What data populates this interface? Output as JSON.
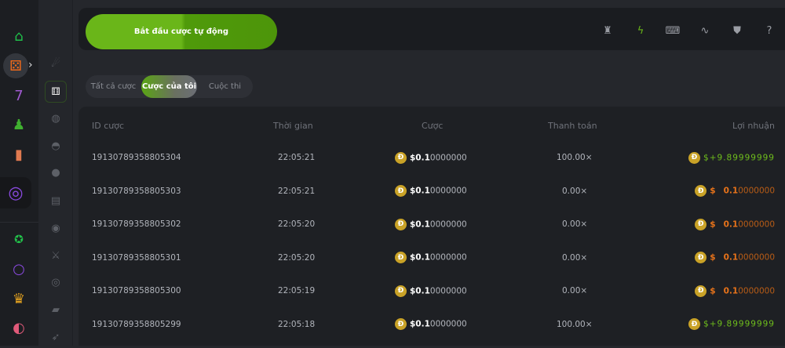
{
  "sidebar": {
    "icons": [
      "home-icon",
      "dice-icon",
      "slot-icon",
      "joystick-icon",
      "cards-icon",
      "target-icon",
      "star-badge-icon",
      "ring-icon",
      "crown-icon",
      "mask-icon"
    ],
    "expand": "›"
  },
  "game_bar": {
    "icons": [
      "comet-icon",
      "dice-white-icon",
      "chips-icon",
      "helmet-icon",
      "ball-icon",
      "card-stack-icon",
      "bomb-icon",
      "rocket-sword-icon",
      "disc-icon",
      "tank-icon",
      "rocket-icon"
    ]
  },
  "auto_bet": {
    "label": "Bắt đầu cược tự động"
  },
  "toolbar": {
    "icons": [
      "trophy-icon",
      "lightning-icon",
      "keyboard-icon",
      "chart-wave-icon",
      "acorn-icon",
      "help-icon"
    ]
  },
  "tabs": [
    {
      "label": "Tất cả cược"
    },
    {
      "label": "Cược của tôi",
      "active": true
    },
    {
      "label": "Cuộc thi"
    }
  ],
  "table": {
    "headers": {
      "id": "ID cược",
      "time": "Thời gian",
      "bet": "Cược",
      "payout": "Thanh toán",
      "profit": "Lợi nhuận"
    },
    "coin": "Đ",
    "rows": [
      {
        "id": "19130789358805304",
        "time": "22:05:21",
        "bet_main": "$0.1",
        "bet_rest": "0000000",
        "payout": "100.00×",
        "profit_sign": "$+",
        "profit_main": "9.89999999",
        "profit_rest": "",
        "win": true
      },
      {
        "id": "19130789358805303",
        "time": "22:05:21",
        "bet_main": "$0.1",
        "bet_rest": "0000000",
        "payout": "0.00×",
        "profit_sign": "$",
        "profit_main": "0.1",
        "profit_rest": "0000000",
        "win": false
      },
      {
        "id": "19130789358805302",
        "time": "22:05:20",
        "bet_main": "$0.1",
        "bet_rest": "0000000",
        "payout": "0.00×",
        "profit_sign": "$",
        "profit_main": "0.1",
        "profit_rest": "0000000",
        "win": false
      },
      {
        "id": "19130789358805301",
        "time": "22:05:20",
        "bet_main": "$0.1",
        "bet_rest": "0000000",
        "payout": "0.00×",
        "profit_sign": "$",
        "profit_main": "0.1",
        "profit_rest": "0000000",
        "win": false
      },
      {
        "id": "19130789358805300",
        "time": "22:05:19",
        "bet_main": "$0.1",
        "bet_rest": "0000000",
        "payout": "0.00×",
        "profit_sign": "$",
        "profit_main": "0.1",
        "profit_rest": "0000000",
        "win": false
      },
      {
        "id": "19130789358805299",
        "time": "22:05:18",
        "bet_main": "$0.1",
        "bet_rest": "0000000",
        "payout": "100.00×",
        "profit_sign": "$+",
        "profit_main": "9.89999999",
        "profit_rest": "",
        "win": true
      }
    ]
  },
  "colors": {
    "accent": "#6ab619",
    "loss": "#e8731a",
    "coin": "#c9a227"
  }
}
